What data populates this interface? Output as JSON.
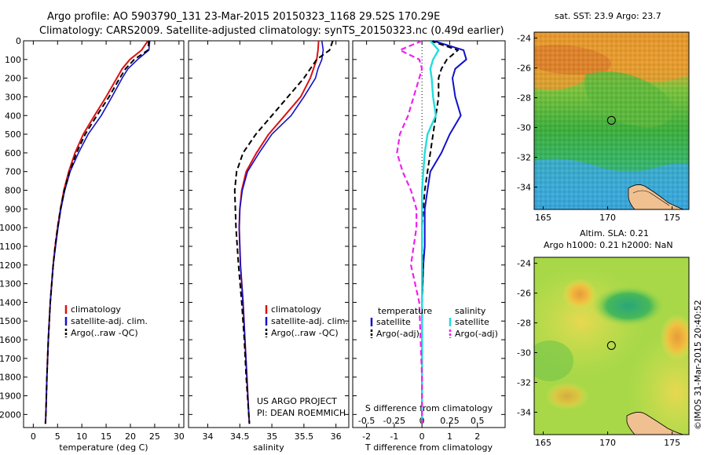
{
  "header": {
    "line1": "Argo profile: AO 5903790_131 23-Mar-2015 20150323_1168 29.52S 170.29E",
    "line2": "Climatology: CARS2009. Satellite-adjusted climatology: synTS_20150323.nc (0.49d earlier)"
  },
  "colors": {
    "climatology": "#dd1111",
    "satellite": "#1111cc",
    "argo": "#000000",
    "sal_sat": "#22dddd",
    "sal_argo": "#ee22ee"
  },
  "chart_data": [
    {
      "type": "line",
      "panel": "temperature",
      "xlabel": "temperature (deg C)",
      "ylabel": "",
      "xlim": [
        -2,
        31
      ],
      "ylim": [
        2070,
        0
      ],
      "xticks": [
        0,
        5,
        10,
        15,
        20,
        25,
        30
      ],
      "yticks": [
        0,
        100,
        200,
        300,
        400,
        500,
        600,
        700,
        800,
        900,
        1000,
        1100,
        1200,
        1300,
        1400,
        1500,
        1600,
        1700,
        1800,
        1900,
        2000
      ],
      "depth": [
        0,
        50,
        100,
        150,
        200,
        300,
        400,
        500,
        600,
        700,
        800,
        900,
        1000,
        1100,
        1200,
        1400,
        1600,
        1800,
        2000,
        2050
      ],
      "series": [
        {
          "name": "climatology",
          "values": [
            23.6,
            22.3,
            19.9,
            18.3,
            17.2,
            15.0,
            12.6,
            10.3,
            8.6,
            7.3,
            6.3,
            5.6,
            5.0,
            4.5,
            4.1,
            3.5,
            3.1,
            2.8,
            2.6,
            2.5
          ]
        },
        {
          "name": "satellite-adj. clim.",
          "values": [
            24.0,
            23.8,
            21.5,
            19.5,
            18.3,
            16.2,
            14.0,
            11.3,
            9.3,
            7.6,
            6.5,
            5.7,
            5.1,
            4.6,
            4.1,
            3.5,
            3.1,
            2.8,
            2.6,
            2.5
          ]
        },
        {
          "name": "Argo(..raw -QC)",
          "values": [
            23.8,
            23.6,
            20.8,
            19.0,
            17.8,
            15.6,
            13.1,
            10.7,
            8.9,
            7.5,
            6.4,
            5.6,
            5.0,
            4.5,
            4.1,
            3.5,
            3.1,
            2.8,
            2.6,
            2.5
          ]
        }
      ],
      "legend": [
        "climatology",
        "satellite-adj. clim.",
        "Argo(..raw -QC)"
      ]
    },
    {
      "type": "line",
      "panel": "salinity",
      "xlabel": "salinity",
      "xlim": [
        33.7,
        36.2
      ],
      "ylim": [
        2070,
        0
      ],
      "xticks": [
        34,
        34.5,
        35,
        35.5,
        36
      ],
      "xticklabels": [
        "34",
        "34.5",
        "35",
        "35.5",
        "36"
      ],
      "depth": [
        0,
        50,
        100,
        150,
        200,
        300,
        400,
        500,
        600,
        700,
        800,
        900,
        1000,
        1100,
        1200,
        1400,
        1600,
        1800,
        2000,
        2050
      ],
      "series": [
        {
          "name": "climatology",
          "values": [
            35.73,
            35.72,
            35.7,
            35.65,
            35.6,
            35.45,
            35.2,
            34.95,
            34.76,
            34.6,
            34.53,
            34.5,
            34.49,
            34.5,
            34.51,
            34.55,
            34.58,
            34.61,
            34.64,
            34.65
          ]
        },
        {
          "name": "satellite-adj. clim.",
          "values": [
            35.78,
            35.8,
            35.78,
            35.72,
            35.68,
            35.5,
            35.3,
            35.0,
            34.8,
            34.62,
            34.54,
            34.5,
            34.49,
            34.5,
            34.51,
            34.55,
            34.58,
            34.61,
            34.64,
            34.65
          ]
        },
        {
          "name": "Argo(..raw -QC)",
          "values": [
            35.95,
            35.9,
            35.7,
            35.6,
            35.5,
            35.25,
            35.0,
            34.75,
            34.55,
            34.45,
            34.42,
            34.43,
            34.44,
            34.46,
            34.48,
            34.53,
            34.57,
            34.6,
            34.64,
            34.65
          ]
        }
      ],
      "legend": [
        "climatology",
        "satellite-adj. clim.",
        "Argo(..raw -QC)"
      ],
      "annotation": [
        "US ARGO PROJECT",
        "PI: DEAN ROEMMICH"
      ]
    },
    {
      "type": "line",
      "panel": "difference",
      "xlabel": "T difference from climatology",
      "xlabel_top": "S difference from climatology",
      "xlim": [
        -2.5,
        3.0
      ],
      "ylim": [
        2070,
        0
      ],
      "xticks": [
        -2,
        -1,
        0,
        1,
        2
      ],
      "xticks_top": [
        -2,
        -1,
        0,
        1,
        2
      ],
      "xticklabels_top": [
        "-0.5",
        "-0.25",
        "0",
        "0.25",
        "0.5"
      ],
      "depth": [
        0,
        50,
        100,
        150,
        200,
        300,
        400,
        500,
        600,
        700,
        800,
        900,
        1000,
        1100,
        1200,
        1400,
        1600,
        1800,
        2000,
        2050
      ],
      "series": [
        {
          "name": "temperature satellite",
          "values": [
            0.4,
            1.5,
            1.6,
            1.2,
            1.1,
            1.2,
            1.4,
            1.0,
            0.7,
            0.3,
            0.2,
            0.1,
            0.1,
            0.1,
            0.05,
            0.0,
            0.0,
            0.0,
            0.0,
            0.0
          ]
        },
        {
          "name": "temperature Argo(-adj)",
          "values": [
            0.3,
            1.3,
            0.9,
            0.7,
            0.6,
            0.6,
            0.5,
            0.4,
            0.3,
            0.2,
            0.1,
            0.05,
            0.0,
            0.0,
            0.05,
            0.0,
            0.0,
            0.0,
            0.0,
            0.0
          ]
        },
        {
          "name": "salinity satellite",
          "values": [
            0.3,
            0.6,
            0.4,
            0.3,
            0.35,
            0.4,
            0.5,
            0.2,
            0.1,
            0.05,
            0.0,
            0.0,
            0.0,
            0.0,
            0.0,
            0.0,
            0.0,
            0.0,
            0.0,
            0.0
          ]
        },
        {
          "name": "salinity Argo(-adj)",
          "values": [
            0.0,
            -0.8,
            -0.1,
            0.0,
            -0.1,
            -0.3,
            -0.5,
            -0.8,
            -0.9,
            -0.7,
            -0.4,
            -0.2,
            -0.2,
            -0.3,
            -0.4,
            -0.1,
            -0.05,
            0.0,
            0.0,
            0.0
          ]
        }
      ],
      "legend_headers": [
        "temperature",
        "salinity"
      ],
      "legend": [
        "satellite",
        "Argo(-adj)",
        "satellite",
        "Argo(-adj)"
      ]
    },
    {
      "type": "heatmap",
      "panel": "sst_map",
      "title": "sat. SST: 23.9  Argo: 23.7",
      "xlim": [
        164.3,
        176.3
      ],
      "ylim": [
        -35.5,
        -23.6
      ],
      "xticks": [
        165,
        170,
        175
      ],
      "yticks": [
        -24,
        -26,
        -28,
        -30,
        -32,
        -34
      ],
      "marker": [
        170.29,
        -29.52
      ]
    },
    {
      "type": "heatmap",
      "panel": "sla_map",
      "title_line1": "Altim. SLA: 0.21",
      "title_line2": "Argo h1000: 0.21  h2000: NaN",
      "xlim": [
        164.3,
        176.3
      ],
      "ylim": [
        -35.5,
        -23.6
      ],
      "xticks": [
        165,
        170,
        175
      ],
      "yticks": [
        -24,
        -26,
        -28,
        -30,
        -32,
        -34
      ],
      "marker": [
        170.29,
        -29.52
      ]
    }
  ],
  "credit": "©IMOS 31-Mar-2015 20:40:52"
}
